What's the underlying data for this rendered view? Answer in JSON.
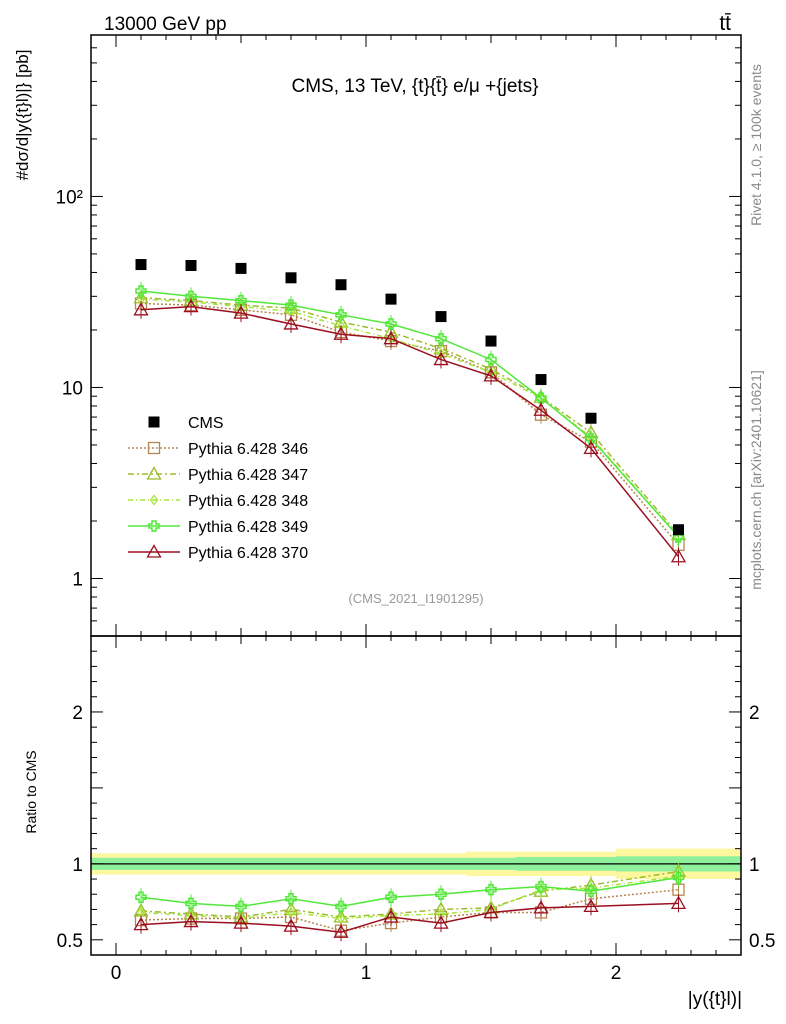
{
  "header": {
    "energy_label": "13000 GeV pp",
    "process_label": "tt̄",
    "title": "CMS, 13 TeV, {t}{t̄} e/μ +{jets}",
    "watermark": "(CMS_2021_I1901295)",
    "side_rivet": "Rivet 4.1.0, ≥ 100k events",
    "side_mcplots": "mcplots.cern.ch [arXiv:2401.10621]"
  },
  "colors": {
    "data": "#000000",
    "p346": "#b5874f",
    "p347": "#9bbd2b",
    "p348": "#a8e63a",
    "p349": "#52e83a",
    "p370": "#9b0f20",
    "band_outer": "#fdf7a0",
    "band_inner": "#8ef09a"
  },
  "chart_data": [
    {
      "type": "line",
      "panel": "main",
      "yscale": "log",
      "ylabel": "#dσ/d|y({t}l)|} [pb]",
      "ylim": [
        0.5,
        700
      ],
      "xlim": [
        -0.1,
        2.5
      ],
      "y_ticks": [
        {
          "value": 1,
          "label": "1"
        },
        {
          "value": 10,
          "label": "10"
        },
        {
          "value": 100,
          "label": "10²"
        }
      ],
      "x": [
        0.1,
        0.3,
        0.5,
        0.7,
        0.9,
        1.1,
        1.3,
        1.5,
        1.7,
        1.9,
        2.25
      ],
      "data": {
        "name": "CMS",
        "values": [
          44.0,
          43.5,
          42.0,
          37.5,
          34.5,
          29.0,
          23.5,
          17.5,
          11.0,
          6.9,
          1.8
        ]
      },
      "series": [
        {
          "name": "Pythia 6.428 346",
          "key": "p346",
          "marker": "square",
          "dash": "2,2",
          "values": [
            27.5,
            27.0,
            25.5,
            24.0,
            19.5,
            17.5,
            15.5,
            12.0,
            7.2,
            5.2,
            1.5
          ]
        },
        {
          "name": "Pythia 6.428 347",
          "key": "p347",
          "marker": "triangle",
          "dash": "6,3,2,3",
          "values": [
            29.5,
            28.5,
            27.0,
            26.0,
            22.0,
            19.5,
            16.0,
            12.5,
            8.9,
            5.8,
            1.7
          ]
        },
        {
          "name": "Pythia 6.428 348",
          "key": "p348",
          "marker": "diamond",
          "dash": "5,3,1,3",
          "values": [
            29.0,
            28.0,
            26.5,
            25.0,
            21.0,
            18.0,
            15.0,
            12.0,
            8.8,
            5.5,
            1.65
          ]
        },
        {
          "name": "Pythia 6.428 349",
          "key": "p349",
          "marker": "cross",
          "dash": "",
          "values": [
            32.0,
            30.0,
            28.5,
            27.0,
            24.0,
            21.5,
            18.0,
            14.0,
            8.8,
            5.4,
            1.65
          ]
        },
        {
          "name": "Pythia 6.428 370",
          "key": "p370",
          "marker": "triangle",
          "dash": "",
          "values": [
            25.5,
            26.5,
            24.5,
            21.5,
            19.0,
            18.0,
            14.0,
            11.5,
            7.6,
            4.8,
            1.3
          ]
        }
      ]
    },
    {
      "type": "line",
      "panel": "ratio",
      "ylabel": "Ratio to CMS",
      "xlabel": "|y({t}l)|",
      "ylim": [
        0.4,
        2.5
      ],
      "xlim": [
        -0.1,
        2.5
      ],
      "y_ticks": [
        {
          "value": 0.5,
          "label": "0.5"
        },
        {
          "value": 1,
          "label": "1"
        },
        {
          "value": 2,
          "label": "2"
        }
      ],
      "x_ticks": [
        {
          "value": 0,
          "label": "0"
        },
        {
          "value": 1,
          "label": "1"
        },
        {
          "value": 2,
          "label": "2"
        }
      ],
      "x": [
        0.1,
        0.3,
        0.5,
        0.7,
        0.9,
        1.1,
        1.3,
        1.5,
        1.7,
        1.9,
        2.25
      ],
      "band_outer": {
        "x_edges": [
          -0.1,
          0.4,
          0.8,
          1.2,
          1.4,
          1.6,
          2.0,
          2.5
        ],
        "lo": [
          0.93,
          0.93,
          0.93,
          0.93,
          0.92,
          0.92,
          0.9,
          0.89
        ],
        "hi": [
          1.07,
          1.07,
          1.07,
          1.07,
          1.08,
          1.08,
          1.1,
          1.11
        ]
      },
      "band_inner": {
        "x_edges": [
          -0.1,
          0.4,
          0.8,
          1.2,
          1.4,
          1.6,
          2.0,
          2.5
        ],
        "lo": [
          0.96,
          0.96,
          0.96,
          0.96,
          0.96,
          0.955,
          0.95,
          0.95
        ],
        "hi": [
          1.04,
          1.04,
          1.04,
          1.04,
          1.04,
          1.045,
          1.05,
          1.05
        ]
      },
      "series": [
        {
          "name": "Pythia 6.428 346",
          "key": "p346",
          "marker": "square",
          "dash": "2,2",
          "values": [
            0.63,
            0.64,
            0.64,
            0.65,
            0.56,
            0.61,
            0.65,
            0.68,
            0.68,
            0.77,
            0.83
          ]
        },
        {
          "name": "Pythia 6.428 347",
          "key": "p347",
          "marker": "triangle",
          "dash": "6,3,2,3",
          "values": [
            0.69,
            0.67,
            0.65,
            0.7,
            0.65,
            0.67,
            0.7,
            0.71,
            0.82,
            0.86,
            0.95
          ]
        },
        {
          "name": "Pythia 6.428 348",
          "key": "p348",
          "marker": "diamond",
          "dash": "5,3,1,3",
          "values": [
            0.68,
            0.66,
            0.64,
            0.68,
            0.64,
            0.66,
            0.67,
            0.7,
            0.83,
            0.84,
            0.92
          ]
        },
        {
          "name": "Pythia 6.428 349",
          "key": "p349",
          "marker": "cross",
          "dash": "",
          "values": [
            0.78,
            0.74,
            0.72,
            0.77,
            0.72,
            0.78,
            0.8,
            0.83,
            0.85,
            0.82,
            0.91
          ]
        },
        {
          "name": "Pythia 6.428 370",
          "key": "p370",
          "marker": "triangle",
          "dash": "",
          "values": [
            0.6,
            0.62,
            0.61,
            0.59,
            0.55,
            0.65,
            0.61,
            0.68,
            0.71,
            0.72,
            0.74
          ]
        }
      ]
    }
  ]
}
